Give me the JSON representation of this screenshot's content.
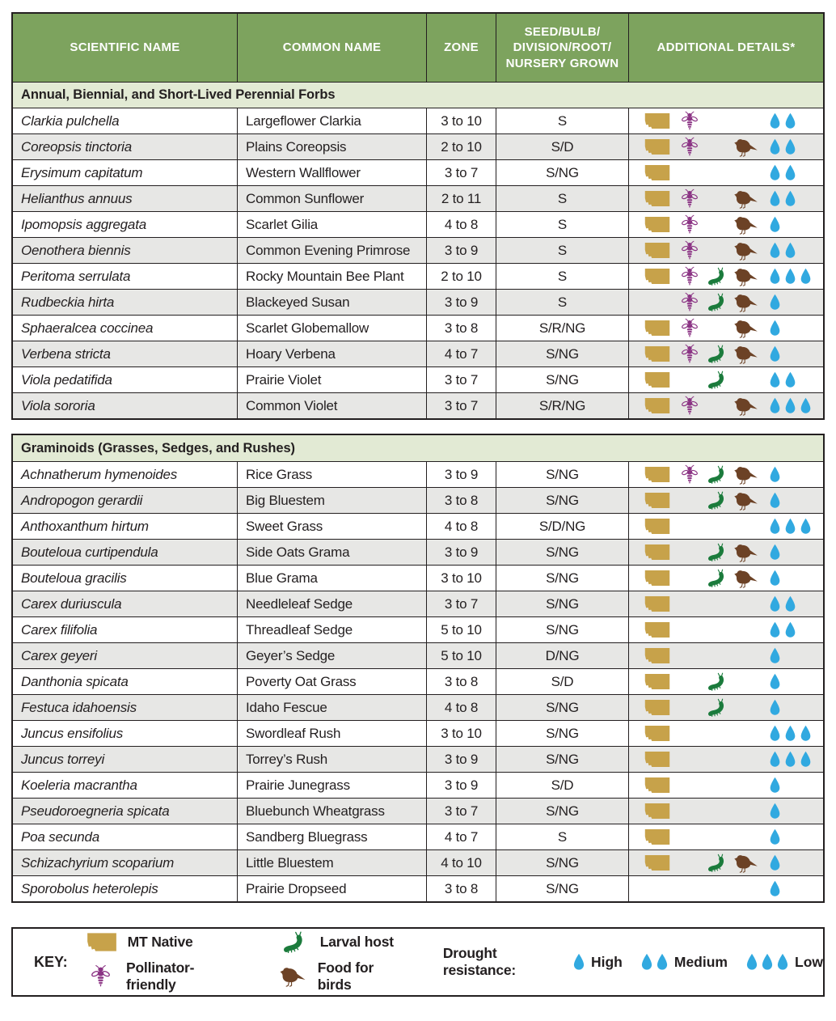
{
  "table": {
    "columns": [
      "SCIENTIFIC NAME",
      "COMMON NAME",
      "ZONE",
      "SEED/BULB/\nDIVISION/ROOT/\nNURSERY GROWN",
      "ADDITIONAL DETAILS*"
    ]
  },
  "sections": [
    {
      "title": "Annual, Biennial, and Short-Lived Perennial Forbs",
      "rows": [
        {
          "scientific": "Clarkia pulchella",
          "common": "Largeflower Clarkia",
          "zone": "3 to 10",
          "seed": "S",
          "icons": {
            "mt_native": true,
            "pollinator": true,
            "larval_host": false,
            "food_for_birds": false
          },
          "drought_drops": 2
        },
        {
          "scientific": "Coreopsis tinctoria",
          "common": "Plains Coreopsis",
          "zone": "2 to 10",
          "seed": "S/D",
          "icons": {
            "mt_native": true,
            "pollinator": true,
            "larval_host": false,
            "food_for_birds": true
          },
          "drought_drops": 2
        },
        {
          "scientific": "Erysimum capitatum",
          "common": "Western Wallflower",
          "zone": "3 to 7",
          "seed": "S/NG",
          "icons": {
            "mt_native": true,
            "pollinator": false,
            "larval_host": false,
            "food_for_birds": false
          },
          "drought_drops": 2
        },
        {
          "scientific": "Helianthus annuus",
          "common": "Common Sunflower",
          "zone": "2 to 11",
          "seed": "S",
          "icons": {
            "mt_native": true,
            "pollinator": true,
            "larval_host": false,
            "food_for_birds": true
          },
          "drought_drops": 2
        },
        {
          "scientific": "Ipomopsis aggregata",
          "common": "Scarlet Gilia",
          "zone": "4 to 8",
          "seed": "S",
          "icons": {
            "mt_native": true,
            "pollinator": true,
            "larval_host": false,
            "food_for_birds": true
          },
          "drought_drops": 1
        },
        {
          "scientific": "Oenothera biennis",
          "common": "Common Evening Primrose",
          "zone": "3 to 9",
          "seed": "S",
          "icons": {
            "mt_native": true,
            "pollinator": true,
            "larval_host": false,
            "food_for_birds": true
          },
          "drought_drops": 2
        },
        {
          "scientific": "Peritoma serrulata",
          "common": "Rocky Mountain Bee Plant",
          "zone": "2 to 10",
          "seed": "S",
          "icons": {
            "mt_native": true,
            "pollinator": true,
            "larval_host": true,
            "food_for_birds": true
          },
          "drought_drops": 3
        },
        {
          "scientific": "Rudbeckia hirta",
          "common": "Blackeyed Susan",
          "zone": "3 to 9",
          "seed": "S",
          "icons": {
            "mt_native": false,
            "pollinator": true,
            "larval_host": true,
            "food_for_birds": true
          },
          "drought_drops": 1
        },
        {
          "scientific": "Sphaeralcea coccinea",
          "common": "Scarlet Globemallow",
          "zone": "3 to 8",
          "seed": "S/R/NG",
          "icons": {
            "mt_native": true,
            "pollinator": true,
            "larval_host": false,
            "food_for_birds": true
          },
          "drought_drops": 1
        },
        {
          "scientific": "Verbena stricta",
          "common": "Hoary Verbena",
          "zone": "4 to 7",
          "seed": "S/NG",
          "icons": {
            "mt_native": true,
            "pollinator": true,
            "larval_host": true,
            "food_for_birds": true
          },
          "drought_drops": 1
        },
        {
          "scientific": "Viola pedatifida",
          "common": "Prairie Violet",
          "zone": "3 to 7",
          "seed": "S/NG",
          "icons": {
            "mt_native": true,
            "pollinator": false,
            "larval_host": true,
            "food_for_birds": false
          },
          "drought_drops": 2
        },
        {
          "scientific": "Viola sororia",
          "common": "Common Violet",
          "zone": "3 to 7",
          "seed": "S/R/NG",
          "icons": {
            "mt_native": true,
            "pollinator": true,
            "larval_host": false,
            "food_for_birds": true
          },
          "drought_drops": 3
        }
      ]
    },
    {
      "title": "Graminoids (Grasses, Sedges, and Rushes)",
      "rows": [
        {
          "scientific": "Achnatherum hymenoides",
          "common": "Rice Grass",
          "zone": "3 to 9",
          "seed": "S/NG",
          "icons": {
            "mt_native": true,
            "pollinator": true,
            "larval_host": true,
            "food_for_birds": true
          },
          "drought_drops": 1
        },
        {
          "scientific": "Andropogon gerardii",
          "common": "Big Bluestem",
          "zone": "3 to 8",
          "seed": "S/NG",
          "icons": {
            "mt_native": true,
            "pollinator": false,
            "larval_host": true,
            "food_for_birds": true
          },
          "drought_drops": 1
        },
        {
          "scientific": "Anthoxanthum hirtum",
          "common": "Sweet Grass",
          "zone": "4 to 8",
          "seed": "S/D/NG",
          "icons": {
            "mt_native": true,
            "pollinator": false,
            "larval_host": false,
            "food_for_birds": false
          },
          "drought_drops": 3
        },
        {
          "scientific": "Bouteloua curtipendula",
          "common": "Side Oats Grama",
          "zone": "3 to 9",
          "seed": "S/NG",
          "icons": {
            "mt_native": true,
            "pollinator": false,
            "larval_host": true,
            "food_for_birds": true
          },
          "drought_drops": 1
        },
        {
          "scientific": "Bouteloua gracilis",
          "common": "Blue Grama",
          "zone": "3 to 10",
          "seed": "S/NG",
          "icons": {
            "mt_native": true,
            "pollinator": false,
            "larval_host": true,
            "food_for_birds": true
          },
          "drought_drops": 1
        },
        {
          "scientific": "Carex duriuscula",
          "common": "Needleleaf Sedge",
          "zone": "3 to 7",
          "seed": "S/NG",
          "icons": {
            "mt_native": true,
            "pollinator": false,
            "larval_host": false,
            "food_for_birds": false
          },
          "drought_drops": 2
        },
        {
          "scientific": "Carex filifolia",
          "common": "Threadleaf Sedge",
          "zone": "5 to 10",
          "seed": "S/NG",
          "icons": {
            "mt_native": true,
            "pollinator": false,
            "larval_host": false,
            "food_for_birds": false
          },
          "drought_drops": 2
        },
        {
          "scientific": "Carex geyeri",
          "common": "Geyer’s Sedge",
          "zone": "5 to 10",
          "seed": "D/NG",
          "icons": {
            "mt_native": true,
            "pollinator": false,
            "larval_host": false,
            "food_for_birds": false
          },
          "drought_drops": 1
        },
        {
          "scientific": "Danthonia spicata",
          "common": "Poverty Oat Grass",
          "zone": "3 to 8",
          "seed": "S/D",
          "icons": {
            "mt_native": true,
            "pollinator": false,
            "larval_host": true,
            "food_for_birds": false
          },
          "drought_drops": 1
        },
        {
          "scientific": "Festuca idahoensis",
          "common": "Idaho Fescue",
          "zone": "4 to 8",
          "seed": "S/NG",
          "icons": {
            "mt_native": true,
            "pollinator": false,
            "larval_host": true,
            "food_for_birds": false
          },
          "drought_drops": 1
        },
        {
          "scientific": "Juncus ensifolius",
          "common": "Swordleaf Rush",
          "zone": "3 to 10",
          "seed": "S/NG",
          "icons": {
            "mt_native": true,
            "pollinator": false,
            "larval_host": false,
            "food_for_birds": false
          },
          "drought_drops": 3
        },
        {
          "scientific": "Juncus torreyi",
          "common": "Torrey’s Rush",
          "zone": "3 to 9",
          "seed": "S/NG",
          "icons": {
            "mt_native": true,
            "pollinator": false,
            "larval_host": false,
            "food_for_birds": false
          },
          "drought_drops": 3
        },
        {
          "scientific": "Koeleria macrantha",
          "common": "Prairie Junegrass",
          "zone": "3 to 9",
          "seed": "S/D",
          "icons": {
            "mt_native": true,
            "pollinator": false,
            "larval_host": false,
            "food_for_birds": false
          },
          "drought_drops": 1
        },
        {
          "scientific": "Pseudoroegneria spicata",
          "common": "Bluebunch Wheatgrass",
          "zone": "3 to 7",
          "seed": "S/NG",
          "icons": {
            "mt_native": true,
            "pollinator": false,
            "larval_host": false,
            "food_for_birds": false
          },
          "drought_drops": 1
        },
        {
          "scientific": "Poa secunda",
          "common": "Sandberg Bluegrass",
          "zone": "4 to 7",
          "seed": "S",
          "icons": {
            "mt_native": true,
            "pollinator": false,
            "larval_host": false,
            "food_for_birds": false
          },
          "drought_drops": 1
        },
        {
          "scientific": "Schizachyrium scoparium",
          "common": "Little Bluestem",
          "zone": "4 to 10",
          "seed": "S/NG",
          "icons": {
            "mt_native": true,
            "pollinator": false,
            "larval_host": true,
            "food_for_birds": true
          },
          "drought_drops": 1
        },
        {
          "scientific": "Sporobolus heterolepis",
          "common": "Prairie Dropseed",
          "zone": "3 to 8",
          "seed": "S/NG",
          "icons": {
            "mt_native": false,
            "pollinator": false,
            "larval_host": false,
            "food_for_birds": false
          },
          "drought_drops": 1
        }
      ]
    }
  ],
  "key": {
    "label": "KEY:",
    "items": [
      {
        "icon": "mt-native-icon",
        "label": "MT Native"
      },
      {
        "icon": "pollinator-icon",
        "label": "Pollinator-friendly"
      },
      {
        "icon": "larval-host-icon",
        "label": "Larval host"
      },
      {
        "icon": "food-for-birds-icon",
        "label": "Food for birds"
      }
    ],
    "drought": {
      "label": "Drought resistance:",
      "levels": [
        {
          "drops": 1,
          "label": "High"
        },
        {
          "drops": 2,
          "label": "Medium"
        },
        {
          "drops": 3,
          "label": "Low"
        }
      ]
    }
  },
  "colors": {
    "header_green": "#7DA35E",
    "section_green": "#E2EAD4",
    "row_alt": "#E7E7E5",
    "ink": "#231F20",
    "mt_gold": "#C7A24A",
    "pollinator_purple": "#8B3484",
    "larval_green": "#1B7B3C",
    "bird_brown": "#6C4226",
    "drop_blue": "#31A9E0"
  }
}
